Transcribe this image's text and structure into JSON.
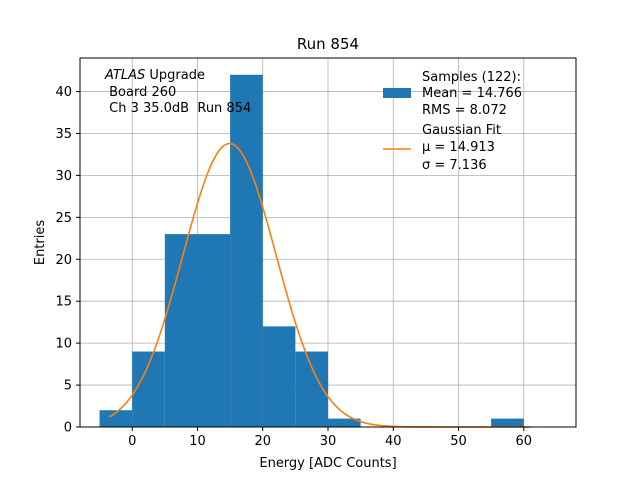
{
  "chart_data": {
    "type": "bar",
    "title": "Run 854",
    "xlabel": "Energy [ADC Counts]",
    "ylabel": "Entries",
    "xlim": [
      -8,
      68
    ],
    "ylim": [
      0,
      44
    ],
    "xticks": [
      0,
      10,
      20,
      30,
      40,
      50,
      60
    ],
    "yticks": [
      0,
      5,
      10,
      15,
      20,
      25,
      30,
      35,
      40
    ],
    "grid": true,
    "bin_edges": [
      -5,
      0,
      5,
      10,
      15,
      20,
      25,
      30,
      35,
      40,
      45,
      50,
      55,
      60,
      65
    ],
    "counts": [
      2,
      9,
      23,
      23,
      42,
      12,
      9,
      1,
      0,
      0,
      0,
      0,
      1,
      0
    ],
    "bar_color": "#1f77b4",
    "fit": {
      "name": "Gaussian Fit",
      "mu": 14.913,
      "sigma": 7.136,
      "amplitude": 33.8,
      "x_range": [
        -3.5,
        61
      ],
      "color": "#ff7f0e"
    },
    "annotation": {
      "line1_italic": "ATLAS",
      "line1_rest": " Upgrade",
      "line2": " Board 260",
      "line3": " Ch 3 35.0dB  Run 854"
    },
    "legend": {
      "placement": "top-right",
      "samples": [
        "Samples (122):",
        "Mean = 14.766",
        "RMS = 8.072"
      ],
      "fit": [
        "Gaussian Fit",
        "μ = 14.913",
        "σ = 7.136"
      ]
    }
  }
}
